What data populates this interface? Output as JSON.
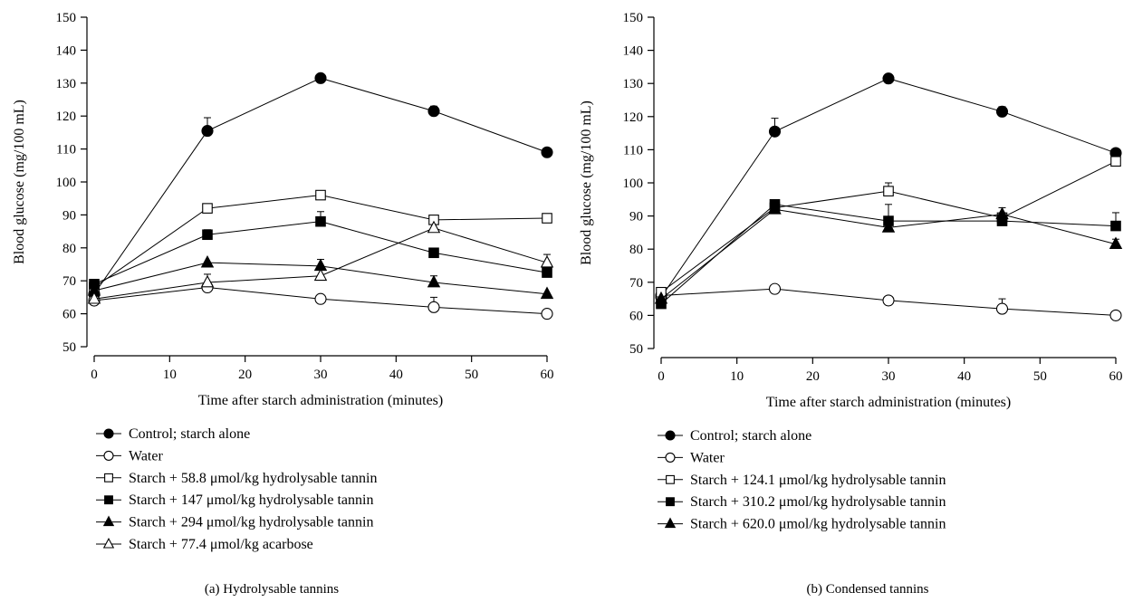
{
  "chart_data": [
    {
      "type": "line",
      "caption": "(a)  Hydrolysable tannins",
      "xlabel": "Time after starch administration (minutes)",
      "ylabel": "Blood glucose (mg/100 mL)",
      "xlim": [
        0,
        60
      ],
      "ylim": [
        50,
        150
      ],
      "xticks": [
        0,
        10,
        20,
        30,
        40,
        50,
        60
      ],
      "yticks": [
        50,
        60,
        70,
        80,
        90,
        100,
        110,
        120,
        130,
        140,
        150
      ],
      "grid": false,
      "legend_position": "below",
      "x": [
        0,
        15,
        30,
        45,
        60
      ],
      "series": [
        {
          "name": "Control; starch alone",
          "marker": "circle-filled",
          "values": [
            66,
            115.5,
            131.5,
            121.5,
            109
          ],
          "errors": [
            0,
            4,
            1,
            1.5,
            0
          ]
        },
        {
          "name": "Water",
          "marker": "circle-open",
          "values": [
            64,
            68,
            64.5,
            62,
            60
          ],
          "errors": [
            0,
            0,
            0,
            3,
            0
          ]
        },
        {
          "name": "Starch + 58.8 μmol/kg hydrolysable tannin",
          "marker": "square-open",
          "values": [
            68,
            92,
            96,
            88.5,
            89
          ],
          "errors": [
            0,
            0,
            0,
            0,
            0
          ]
        },
        {
          "name": "Starch + 147 μmol/kg hydrolysable tannin",
          "marker": "square-filled",
          "values": [
            69,
            84,
            88,
            78.5,
            72.5
          ],
          "errors": [
            0,
            1.5,
            3,
            0,
            0
          ]
        },
        {
          "name": "Starch + 294 μmol/kg hydrolysable tannin",
          "marker": "triangle-filled",
          "values": [
            67,
            75.5,
            74.5,
            69.5,
            66
          ],
          "errors": [
            0,
            0,
            2,
            2,
            0
          ]
        },
        {
          "name": "Starch + 77.4 μmol/kg acarbose",
          "marker": "triangle-open",
          "values": [
            64.5,
            69.5,
            71.5,
            86,
            75.5
          ],
          "errors": [
            0,
            2.5,
            0,
            0,
            2.5
          ]
        }
      ]
    },
    {
      "type": "line",
      "caption": "(b)  Condensed tannins",
      "xlabel": "Time after starch administration (minutes)",
      "ylabel": "Blood glucose (mg/100 mL)",
      "xlim": [
        0,
        60
      ],
      "ylim": [
        50,
        150
      ],
      "xticks": [
        0,
        10,
        20,
        30,
        40,
        50,
        60
      ],
      "yticks": [
        50,
        60,
        70,
        80,
        90,
        100,
        110,
        120,
        130,
        140,
        150
      ],
      "grid": false,
      "legend_position": "below",
      "x": [
        0,
        15,
        30,
        45,
        60
      ],
      "series": [
        {
          "name": "Control; starch alone",
          "marker": "circle-filled",
          "values": [
            65.5,
            115.5,
            131.5,
            121.5,
            109
          ],
          "errors": [
            0,
            4,
            1,
            1.5,
            0
          ]
        },
        {
          "name": "Water",
          "marker": "circle-open",
          "values": [
            66,
            68,
            64.5,
            62,
            60
          ],
          "errors": [
            0,
            0,
            0,
            3,
            0
          ]
        },
        {
          "name": "Starch + 124.1 μmol/kg hydrolysable tannin",
          "marker": "square-open",
          "values": [
            67,
            92.5,
            97.5,
            89.5,
            106.5
          ],
          "errors": [
            0,
            0,
            2.5,
            0,
            0
          ]
        },
        {
          "name": "Starch + 310.2 μmol/kg hydrolysable tannin",
          "marker": "square-filled",
          "values": [
            63.5,
            93.5,
            88.5,
            88.5,
            87
          ],
          "errors": [
            0,
            1,
            5,
            0,
            4
          ]
        },
        {
          "name": "Starch + 620.0 μmol/kg hydrolysable tannin",
          "marker": "triangle-filled",
          "values": [
            65,
            92,
            86.5,
            90.5,
            81.5
          ],
          "errors": [
            0,
            1,
            0,
            2,
            1.5
          ]
        }
      ]
    }
  ]
}
